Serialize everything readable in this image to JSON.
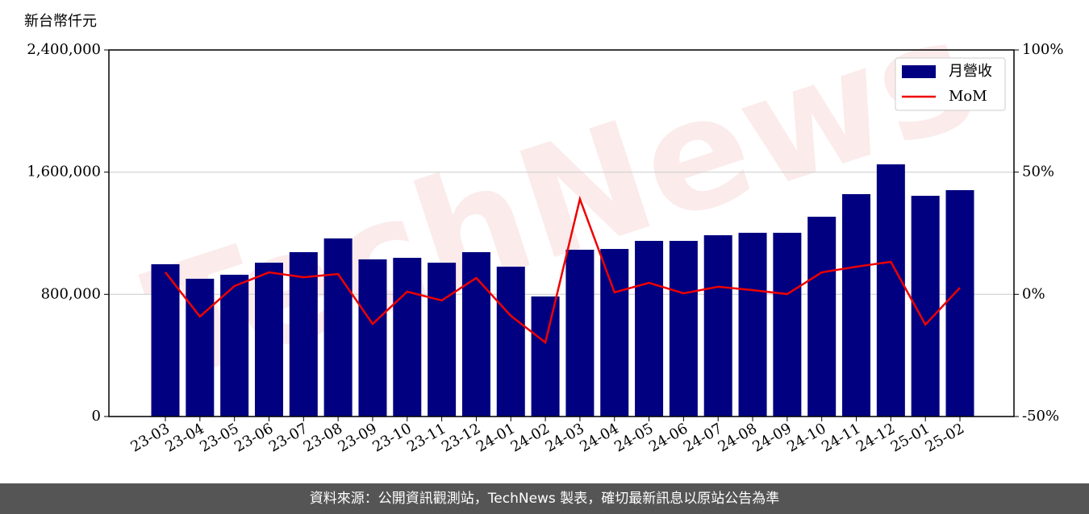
{
  "chart_data": {
    "type": "bar_line",
    "y_axis_label": "新台幣仟元",
    "watermark": "TechNews",
    "categories": [
      "23-03",
      "23-04",
      "23-05",
      "23-06",
      "23-07",
      "23-08",
      "23-09",
      "23-10",
      "23-11",
      "23-12",
      "24-01",
      "24-02",
      "24-03",
      "24-04",
      "24-05",
      "24-06",
      "24-07",
      "24-08",
      "24-09",
      "24-10",
      "24-11",
      "24-12",
      "25-01",
      "25-02"
    ],
    "series": [
      {
        "name": "月營收",
        "type": "bar",
        "color": "#000080",
        "axis": "y",
        "values": [
          997000,
          902000,
          928000,
          1007000,
          1076000,
          1166000,
          1029000,
          1039000,
          1007000,
          1076000,
          981000,
          786000,
          1092000,
          1097000,
          1150000,
          1150000,
          1187000,
          1203000,
          1203000,
          1308000,
          1456000,
          1651000,
          1445000,
          1482000
        ]
      },
      {
        "name": "MoM",
        "type": "line",
        "color": "#ee0000",
        "axis": "y2",
        "values": [
          9.0,
          -9.1,
          3.4,
          9.0,
          7.0,
          8.3,
          -12.1,
          1.1,
          -2.5,
          6.7,
          -8.8,
          -19.7,
          39.0,
          0.8,
          4.7,
          0.4,
          3.1,
          1.7,
          0.1,
          9.0,
          11.3,
          13.3,
          -12.4,
          2.7
        ]
      }
    ],
    "ylim": [
      0,
      2400000
    ],
    "yticks": [
      0,
      {
        "value": 800000,
        "label": "800,000"
      },
      {
        "value": 1600000,
        "label": "1,600,000"
      },
      {
        "value": 2400000,
        "label": "2,400,000"
      }
    ],
    "y2lim": [
      -50,
      100
    ],
    "y2ticks": [
      {
        "value": -50,
        "label": "-50%"
      },
      {
        "value": 0,
        "label": "0%"
      },
      {
        "value": 50,
        "label": "50%"
      },
      {
        "value": 100,
        "label": "100%"
      }
    ],
    "grid": true,
    "legend": "upper right"
  },
  "footer": "資料來源：公開資訊觀測站，TechNews 製表，確切最新訊息以原站公告為準"
}
